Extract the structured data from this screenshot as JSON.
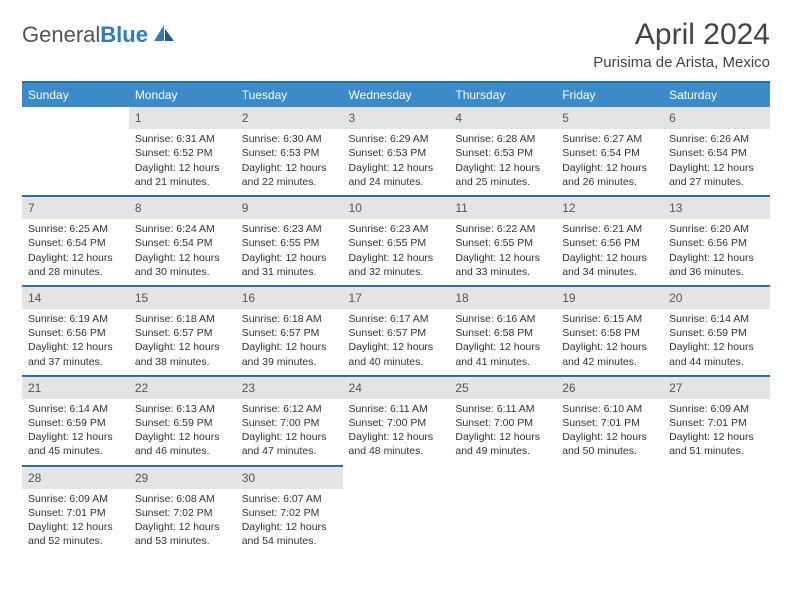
{
  "logo": {
    "text_general": "General",
    "text_blue": "Blue"
  },
  "header": {
    "month_title": "April 2024",
    "location": "Purisima de Arista, Mexico"
  },
  "colors": {
    "header_bg": "#3b8bca",
    "header_text": "#ffffff",
    "row_border": "#2f6fa3",
    "daynum_bg": "#e4e4e4",
    "body_text": "#333333",
    "logo_blue": "#2f7ac0"
  },
  "weekdays": [
    "Sunday",
    "Monday",
    "Tuesday",
    "Wednesday",
    "Thursday",
    "Friday",
    "Saturday"
  ],
  "grid": [
    [
      null,
      {
        "n": "1",
        "sr": "Sunrise: 6:31 AM",
        "ss": "Sunset: 6:52 PM",
        "dl": "Daylight: 12 hours and 21 minutes."
      },
      {
        "n": "2",
        "sr": "Sunrise: 6:30 AM",
        "ss": "Sunset: 6:53 PM",
        "dl": "Daylight: 12 hours and 22 minutes."
      },
      {
        "n": "3",
        "sr": "Sunrise: 6:29 AM",
        "ss": "Sunset: 6:53 PM",
        "dl": "Daylight: 12 hours and 24 minutes."
      },
      {
        "n": "4",
        "sr": "Sunrise: 6:28 AM",
        "ss": "Sunset: 6:53 PM",
        "dl": "Daylight: 12 hours and 25 minutes."
      },
      {
        "n": "5",
        "sr": "Sunrise: 6:27 AM",
        "ss": "Sunset: 6:54 PM",
        "dl": "Daylight: 12 hours and 26 minutes."
      },
      {
        "n": "6",
        "sr": "Sunrise: 6:26 AM",
        "ss": "Sunset: 6:54 PM",
        "dl": "Daylight: 12 hours and 27 minutes."
      }
    ],
    [
      {
        "n": "7",
        "sr": "Sunrise: 6:25 AM",
        "ss": "Sunset: 6:54 PM",
        "dl": "Daylight: 12 hours and 28 minutes."
      },
      {
        "n": "8",
        "sr": "Sunrise: 6:24 AM",
        "ss": "Sunset: 6:54 PM",
        "dl": "Daylight: 12 hours and 30 minutes."
      },
      {
        "n": "9",
        "sr": "Sunrise: 6:23 AM",
        "ss": "Sunset: 6:55 PM",
        "dl": "Daylight: 12 hours and 31 minutes."
      },
      {
        "n": "10",
        "sr": "Sunrise: 6:23 AM",
        "ss": "Sunset: 6:55 PM",
        "dl": "Daylight: 12 hours and 32 minutes."
      },
      {
        "n": "11",
        "sr": "Sunrise: 6:22 AM",
        "ss": "Sunset: 6:55 PM",
        "dl": "Daylight: 12 hours and 33 minutes."
      },
      {
        "n": "12",
        "sr": "Sunrise: 6:21 AM",
        "ss": "Sunset: 6:56 PM",
        "dl": "Daylight: 12 hours and 34 minutes."
      },
      {
        "n": "13",
        "sr": "Sunrise: 6:20 AM",
        "ss": "Sunset: 6:56 PM",
        "dl": "Daylight: 12 hours and 36 minutes."
      }
    ],
    [
      {
        "n": "14",
        "sr": "Sunrise: 6:19 AM",
        "ss": "Sunset: 6:56 PM",
        "dl": "Daylight: 12 hours and 37 minutes."
      },
      {
        "n": "15",
        "sr": "Sunrise: 6:18 AM",
        "ss": "Sunset: 6:57 PM",
        "dl": "Daylight: 12 hours and 38 minutes."
      },
      {
        "n": "16",
        "sr": "Sunrise: 6:18 AM",
        "ss": "Sunset: 6:57 PM",
        "dl": "Daylight: 12 hours and 39 minutes."
      },
      {
        "n": "17",
        "sr": "Sunrise: 6:17 AM",
        "ss": "Sunset: 6:57 PM",
        "dl": "Daylight: 12 hours and 40 minutes."
      },
      {
        "n": "18",
        "sr": "Sunrise: 6:16 AM",
        "ss": "Sunset: 6:58 PM",
        "dl": "Daylight: 12 hours and 41 minutes."
      },
      {
        "n": "19",
        "sr": "Sunrise: 6:15 AM",
        "ss": "Sunset: 6:58 PM",
        "dl": "Daylight: 12 hours and 42 minutes."
      },
      {
        "n": "20",
        "sr": "Sunrise: 6:14 AM",
        "ss": "Sunset: 6:59 PM",
        "dl": "Daylight: 12 hours and 44 minutes."
      }
    ],
    [
      {
        "n": "21",
        "sr": "Sunrise: 6:14 AM",
        "ss": "Sunset: 6:59 PM",
        "dl": "Daylight: 12 hours and 45 minutes."
      },
      {
        "n": "22",
        "sr": "Sunrise: 6:13 AM",
        "ss": "Sunset: 6:59 PM",
        "dl": "Daylight: 12 hours and 46 minutes."
      },
      {
        "n": "23",
        "sr": "Sunrise: 6:12 AM",
        "ss": "Sunset: 7:00 PM",
        "dl": "Daylight: 12 hours and 47 minutes."
      },
      {
        "n": "24",
        "sr": "Sunrise: 6:11 AM",
        "ss": "Sunset: 7:00 PM",
        "dl": "Daylight: 12 hours and 48 minutes."
      },
      {
        "n": "25",
        "sr": "Sunrise: 6:11 AM",
        "ss": "Sunset: 7:00 PM",
        "dl": "Daylight: 12 hours and 49 minutes."
      },
      {
        "n": "26",
        "sr": "Sunrise: 6:10 AM",
        "ss": "Sunset: 7:01 PM",
        "dl": "Daylight: 12 hours and 50 minutes."
      },
      {
        "n": "27",
        "sr": "Sunrise: 6:09 AM",
        "ss": "Sunset: 7:01 PM",
        "dl": "Daylight: 12 hours and 51 minutes."
      }
    ],
    [
      {
        "n": "28",
        "sr": "Sunrise: 6:09 AM",
        "ss": "Sunset: 7:01 PM",
        "dl": "Daylight: 12 hours and 52 minutes."
      },
      {
        "n": "29",
        "sr": "Sunrise: 6:08 AM",
        "ss": "Sunset: 7:02 PM",
        "dl": "Daylight: 12 hours and 53 minutes."
      },
      {
        "n": "30",
        "sr": "Sunrise: 6:07 AM",
        "ss": "Sunset: 7:02 PM",
        "dl": "Daylight: 12 hours and 54 minutes."
      },
      null,
      null,
      null,
      null
    ]
  ]
}
